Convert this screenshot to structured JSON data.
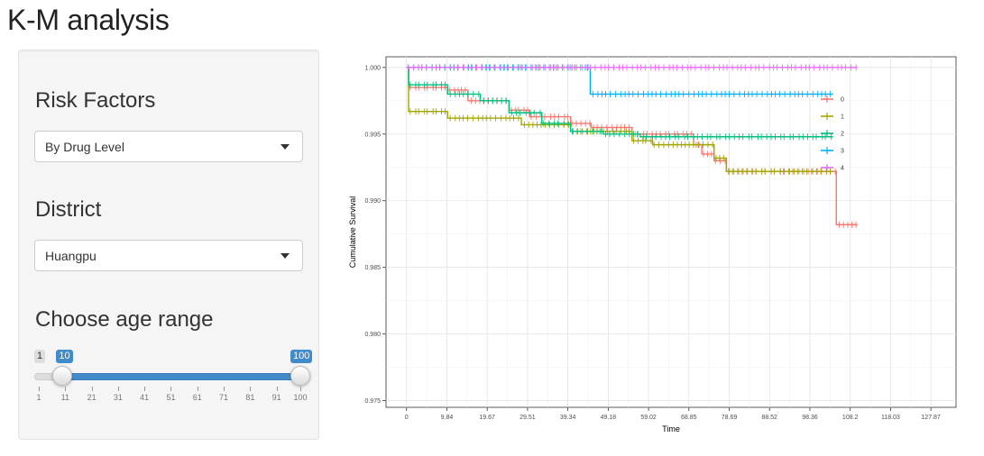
{
  "page": {
    "title": "K-M analysis"
  },
  "sidebar": {
    "risk_factors": {
      "label": "Risk Factors",
      "selected": "By Drug Level"
    },
    "district": {
      "label": "District",
      "selected": "Huangpu"
    },
    "age_range": {
      "label": "Choose age range",
      "min": 1,
      "max": 100,
      "from": 10,
      "to": 100,
      "min_label": "1",
      "from_label": "10",
      "to_label": "100",
      "ticks": [
        "1",
        "11",
        "21",
        "31",
        "41",
        "51",
        "61",
        "71",
        "81",
        "91",
        "100"
      ]
    }
  },
  "chart_data": {
    "type": "line",
    "title": "",
    "xlabel": "Time",
    "ylabel": "Cumulative Survival",
    "xlim": [
      -5,
      134
    ],
    "ylim": [
      0.9745,
      1.0008
    ],
    "x_ticks": [
      "0",
      "9.84",
      "19.67",
      "29.51",
      "39.34",
      "49.18",
      "59.02",
      "68.85",
      "78.69",
      "88.52",
      "98.36",
      "108.2",
      "118.03",
      "127.87"
    ],
    "y_ticks": [
      "0.975",
      "0.980",
      "0.985",
      "0.990",
      "0.995",
      "1.000"
    ],
    "grid": true,
    "legend_position": "right",
    "series": [
      {
        "name": "0",
        "color": "#F8766D",
        "points": [
          [
            0,
            1.0
          ],
          [
            0.5,
            0.9985
          ],
          [
            10,
            0.9983
          ],
          [
            15,
            0.9975
          ],
          [
            25,
            0.9968
          ],
          [
            30,
            0.9963
          ],
          [
            40,
            0.9958
          ],
          [
            45,
            0.9955
          ],
          [
            55,
            0.995
          ],
          [
            70,
            0.9942
          ],
          [
            72,
            0.9935
          ],
          [
            75,
            0.993
          ],
          [
            78,
            0.9922
          ],
          [
            104,
            0.9922
          ],
          [
            104.8,
            0.9882
          ],
          [
            110,
            0.9882
          ]
        ]
      },
      {
        "name": "1",
        "color": "#A3A500",
        "points": [
          [
            0,
            1.0
          ],
          [
            0.5,
            0.9967
          ],
          [
            10,
            0.9962
          ],
          [
            28,
            0.9957
          ],
          [
            40,
            0.9952
          ],
          [
            55,
            0.9945
          ],
          [
            60,
            0.9942
          ],
          [
            75,
            0.9932
          ],
          [
            78,
            0.9922
          ],
          [
            104,
            0.9922
          ]
        ]
      },
      {
        "name": "2",
        "color": "#00BF7D",
        "points": [
          [
            0,
            1.0
          ],
          [
            0.5,
            0.9987
          ],
          [
            10,
            0.998
          ],
          [
            18,
            0.9975
          ],
          [
            25,
            0.9966
          ],
          [
            33,
            0.9958
          ],
          [
            40,
            0.9952
          ],
          [
            48,
            0.995
          ],
          [
            57,
            0.9948
          ],
          [
            104,
            0.9948
          ]
        ]
      },
      {
        "name": "3",
        "color": "#00B0F6",
        "points": [
          [
            0,
            1.0
          ],
          [
            44,
            1.0
          ],
          [
            44.8,
            0.998
          ],
          [
            104,
            0.998
          ]
        ]
      },
      {
        "name": "4",
        "color": "#E76BF3",
        "points": [
          [
            0,
            1.0
          ],
          [
            110,
            1.0
          ]
        ]
      }
    ]
  }
}
